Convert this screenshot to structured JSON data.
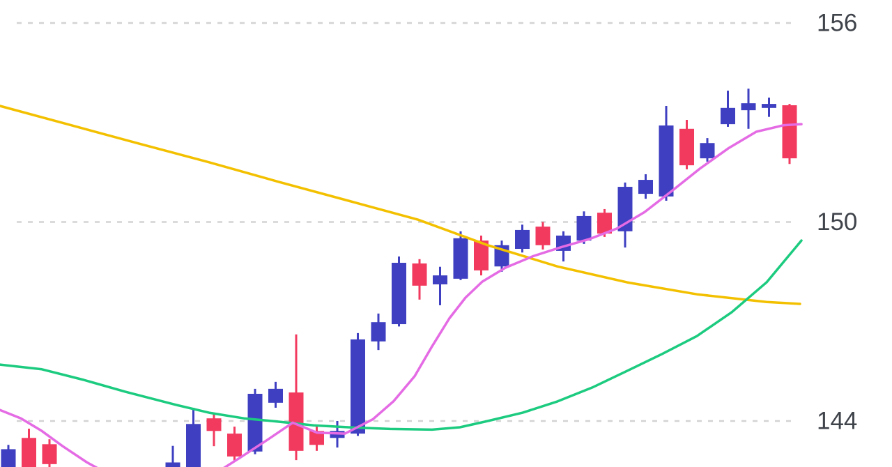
{
  "chart_data": {
    "type": "candlestick",
    "title": "",
    "xlabel": "",
    "ylabel": "",
    "grid": true,
    "background": "#ffffff",
    "y_axis": {
      "side": "right",
      "ticks": [
        {
          "label": "156",
          "price": 156
        },
        {
          "label": "150",
          "price": 150
        },
        {
          "label": "144",
          "price": 144
        }
      ],
      "visible_range": [
        142.6,
        156.7
      ]
    },
    "colors": {
      "bull": "#3e3fc1",
      "bear": "#f23a5f",
      "ma_yellow": "#f3c000",
      "ma_green": "#1ccb7f",
      "ma_magenta": "#e46be4",
      "gridline": "#d3d3d3",
      "tick_label": "#3f434a"
    },
    "candles": [
      {
        "i": 0,
        "o": 142.4,
        "h": 143.28,
        "l": 142.35,
        "c": 143.15
      },
      {
        "i": 1,
        "o": 143.49,
        "h": 143.77,
        "l": 142.3,
        "c": 142.4
      },
      {
        "i": 2,
        "o": 143.3,
        "h": 143.45,
        "l": 142.55,
        "c": 142.7
      },
      {
        "i": 8,
        "o": 142.35,
        "h": 143.25,
        "l": 142.25,
        "c": 142.75
      },
      {
        "i": 9,
        "o": 142.5,
        "h": 144.4,
        "l": 142.4,
        "c": 143.91
      },
      {
        "i": 10,
        "o": 144.08,
        "h": 144.25,
        "l": 143.24,
        "c": 143.7
      },
      {
        "i": 11,
        "o": 143.62,
        "h": 143.83,
        "l": 142.78,
        "c": 142.93
      },
      {
        "i": 12,
        "o": 143.08,
        "h": 144.97,
        "l": 143.0,
        "c": 144.82
      },
      {
        "i": 13,
        "o": 144.55,
        "h": 145.18,
        "l": 144.4,
        "c": 144.97
      },
      {
        "i": 14,
        "o": 144.86,
        "h": 146.61,
        "l": 142.82,
        "c": 143.1
      },
      {
        "i": 15,
        "o": 143.7,
        "h": 143.85,
        "l": 143.1,
        "c": 143.28
      },
      {
        "i": 16,
        "o": 143.49,
        "h": 144.0,
        "l": 143.2,
        "c": 143.7
      },
      {
        "i": 17,
        "o": 143.62,
        "h": 146.65,
        "l": 143.55,
        "c": 146.46
      },
      {
        "i": 18,
        "o": 146.4,
        "h": 147.24,
        "l": 146.14,
        "c": 146.98
      },
      {
        "i": 19,
        "o": 146.92,
        "h": 148.96,
        "l": 146.85,
        "c": 148.77
      },
      {
        "i": 20,
        "o": 148.75,
        "h": 148.88,
        "l": 147.66,
        "c": 148.08
      },
      {
        "i": 21,
        "o": 148.12,
        "h": 148.65,
        "l": 147.49,
        "c": 148.39
      },
      {
        "i": 22,
        "o": 148.29,
        "h": 149.72,
        "l": 148.25,
        "c": 149.51
      },
      {
        "i": 23,
        "o": 149.44,
        "h": 149.59,
        "l": 148.39,
        "c": 148.54
      },
      {
        "i": 24,
        "o": 148.66,
        "h": 149.44,
        "l": 148.5,
        "c": 149.3
      },
      {
        "i": 25,
        "o": 149.19,
        "h": 149.92,
        "l": 149.08,
        "c": 149.76
      },
      {
        "i": 26,
        "o": 149.86,
        "h": 150.0,
        "l": 149.17,
        "c": 149.3
      },
      {
        "i": 27,
        "o": 149.13,
        "h": 149.72,
        "l": 148.81,
        "c": 149.59
      },
      {
        "i": 28,
        "o": 149.44,
        "h": 150.32,
        "l": 149.34,
        "c": 150.18
      },
      {
        "i": 29,
        "o": 150.28,
        "h": 150.39,
        "l": 149.55,
        "c": 149.65
      },
      {
        "i": 30,
        "o": 149.72,
        "h": 151.19,
        "l": 149.23,
        "c": 151.06
      },
      {
        "i": 31,
        "o": 150.85,
        "h": 151.44,
        "l": 150.7,
        "c": 151.27
      },
      {
        "i": 32,
        "o": 150.77,
        "h": 153.5,
        "l": 150.64,
        "c": 152.91
      },
      {
        "i": 33,
        "o": 152.81,
        "h": 153.08,
        "l": 151.59,
        "c": 151.71
      },
      {
        "i": 34,
        "o": 151.92,
        "h": 152.53,
        "l": 151.82,
        "c": 152.38
      },
      {
        "i": 35,
        "o": 152.95,
        "h": 153.96,
        "l": 152.87,
        "c": 153.44
      },
      {
        "i": 36,
        "o": 153.37,
        "h": 154.02,
        "l": 152.81,
        "c": 153.58
      },
      {
        "i": 37,
        "o": 153.44,
        "h": 153.75,
        "l": 153.17,
        "c": 153.56
      },
      {
        "i": 38,
        "o": 153.52,
        "h": 153.56,
        "l": 151.75,
        "c": 151.92
      }
    ],
    "moving_averages": [
      {
        "name": "ma-yellow",
        "color_key": "ma_yellow",
        "points": [
          [
            0,
            153.5
          ],
          [
            100,
            152.93
          ],
          [
            200,
            152.36
          ],
          [
            300,
            151.8
          ],
          [
            400,
            151.21
          ],
          [
            500,
            150.64
          ],
          [
            600,
            150.07
          ],
          [
            700,
            149.3
          ],
          [
            800,
            148.66
          ],
          [
            900,
            148.18
          ],
          [
            1000,
            147.82
          ],
          [
            1100,
            147.59
          ],
          [
            1148,
            147.53
          ]
        ]
      },
      {
        "name": "ma-green",
        "color_key": "ma_green",
        "points": [
          [
            0,
            145.7
          ],
          [
            60,
            145.56
          ],
          [
            120,
            145.24
          ],
          [
            180,
            144.88
          ],
          [
            250,
            144.5
          ],
          [
            300,
            144.25
          ],
          [
            350,
            144.08
          ],
          [
            400,
            143.98
          ],
          [
            450,
            143.87
          ],
          [
            500,
            143.81
          ],
          [
            560,
            143.76
          ],
          [
            620,
            143.74
          ],
          [
            660,
            143.81
          ],
          [
            700,
            144.0
          ],
          [
            750,
            144.25
          ],
          [
            800,
            144.59
          ],
          [
            850,
            145.01
          ],
          [
            900,
            145.51
          ],
          [
            950,
            146.02
          ],
          [
            1000,
            146.56
          ],
          [
            1050,
            147.28
          ],
          [
            1100,
            148.18
          ],
          [
            1150,
            149.44
          ]
        ]
      },
      {
        "name": "ma-magenta",
        "color_key": "ma_magenta",
        "points": [
          [
            0,
            144.33
          ],
          [
            30,
            144.08
          ],
          [
            60,
            143.7
          ],
          [
            90,
            143.24
          ],
          [
            125,
            142.75
          ],
          [
            160,
            142.35
          ],
          [
            230,
            141.95
          ],
          [
            300,
            142.3
          ],
          [
            345,
            142.9
          ],
          [
            385,
            143.45
          ],
          [
            420,
            143.95
          ],
          [
            455,
            143.65
          ],
          [
            495,
            143.62
          ],
          [
            535,
            144.05
          ],
          [
            565,
            144.6
          ],
          [
            595,
            145.35
          ],
          [
            620,
            146.25
          ],
          [
            645,
            147.1
          ],
          [
            668,
            147.72
          ],
          [
            692,
            148.2
          ],
          [
            725,
            148.62
          ],
          [
            765,
            148.97
          ],
          [
            805,
            149.24
          ],
          [
            845,
            149.48
          ],
          [
            885,
            149.8
          ],
          [
            925,
            150.3
          ],
          [
            965,
            150.95
          ],
          [
            1005,
            151.62
          ],
          [
            1045,
            152.22
          ],
          [
            1085,
            152.72
          ],
          [
            1125,
            152.92
          ],
          [
            1150,
            152.95
          ]
        ]
      }
    ]
  }
}
